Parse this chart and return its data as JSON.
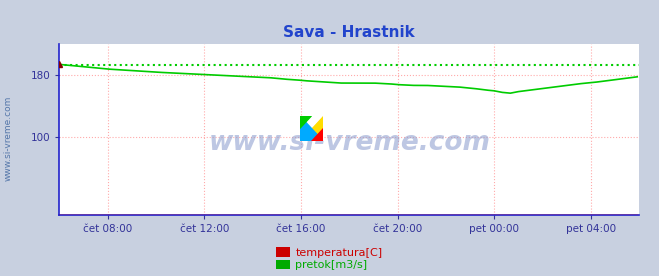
{
  "title": "Sava - Hrastnik",
  "fig_bg_color": "#c8d0e0",
  "plot_bg_color": "#ffffff",
  "grid_color": "#ffaaaa",
  "grid_style": ":",
  "axis_color": "#2222cc",
  "title_color": "#2244cc",
  "title_fontsize": 11,
  "ylabel_text": "www.si-vreme.com",
  "ylabel_color": "#5577aa",
  "watermark": "www.si-vreme.com",
  "legend_items": [
    {
      "label": "temperatura[C]",
      "color": "#cc0000"
    },
    {
      "label": "pretok[m3/s]",
      "color": "#00aa00"
    }
  ],
  "xlim": [
    0,
    288
  ],
  "ylim": [
    0,
    220
  ],
  "yticks": [
    100,
    180
  ],
  "xtick_positions": [
    24,
    72,
    120,
    168,
    216,
    264
  ],
  "xtick_labels": [
    "čet 08:00",
    "čet 12:00",
    "čet 16:00",
    "čet 20:00",
    "pet 00:00",
    "pet 04:00"
  ],
  "pretok_color": "#00cc00",
  "pretok_max": 193.5,
  "pretok_max_color": "#00cc00",
  "temp_color": "#cc0000",
  "temp_value": 0.5,
  "pretok_pts_x": [
    0,
    4,
    8,
    12,
    16,
    20,
    24,
    30,
    36,
    42,
    48,
    56,
    64,
    72,
    80,
    88,
    96,
    104,
    112,
    118,
    122,
    128,
    134,
    140,
    148,
    156,
    164,
    168,
    175,
    182,
    190,
    198,
    206,
    212,
    216,
    220,
    224,
    228,
    234,
    240,
    246,
    252,
    258,
    262,
    266,
    272,
    278,
    284,
    287
  ],
  "pretok_pts_y": [
    194,
    193,
    192,
    191,
    190,
    189,
    188,
    187,
    186,
    185,
    184,
    183,
    182,
    181,
    180,
    179,
    178,
    177,
    175,
    174,
    173,
    172,
    171,
    170,
    170,
    170,
    169,
    168,
    167,
    167,
    166,
    165,
    163,
    161,
    160,
    158,
    157,
    159,
    161,
    163,
    165,
    167,
    169,
    170,
    171,
    173,
    175,
    177,
    178
  ]
}
